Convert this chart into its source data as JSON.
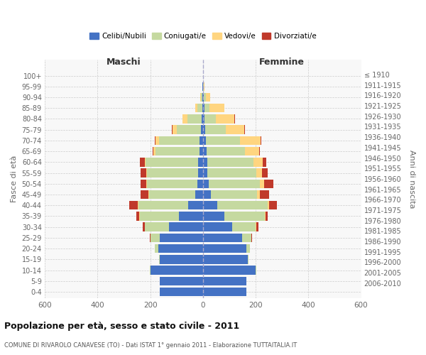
{
  "age_groups": [
    "0-4",
    "5-9",
    "10-14",
    "15-19",
    "20-24",
    "25-29",
    "30-34",
    "35-39",
    "40-44",
    "45-49",
    "50-54",
    "55-59",
    "60-64",
    "65-69",
    "70-74",
    "75-79",
    "80-84",
    "85-89",
    "90-94",
    "95-99",
    "100+"
  ],
  "birth_years": [
    "2006-2010",
    "2001-2005",
    "1996-2000",
    "1991-1995",
    "1986-1990",
    "1981-1985",
    "1976-1980",
    "1971-1975",
    "1966-1970",
    "1961-1965",
    "1956-1960",
    "1951-1955",
    "1946-1950",
    "1941-1945",
    "1936-1940",
    "1931-1935",
    "1926-1930",
    "1921-1925",
    "1916-1920",
    "1911-1915",
    "≤ 1910"
  ],
  "males": {
    "celibi": [
      165,
      165,
      200,
      165,
      170,
      165,
      130,
      90,
      55,
      30,
      22,
      18,
      18,
      14,
      12,
      8,
      5,
      3,
      2,
      1,
      0
    ],
    "coniugati": [
      0,
      0,
      2,
      2,
      12,
      35,
      90,
      150,
      190,
      175,
      190,
      195,
      200,
      165,
      155,
      90,
      55,
      18,
      5,
      2,
      0
    ],
    "vedovi": [
      0,
      0,
      0,
      0,
      0,
      0,
      0,
      2,
      2,
      2,
      2,
      2,
      2,
      8,
      12,
      18,
      18,
      8,
      2,
      0,
      0
    ],
    "divorziati": [
      0,
      0,
      0,
      0,
      0,
      2,
      8,
      10,
      32,
      30,
      22,
      22,
      18,
      5,
      5,
      2,
      0,
      0,
      0,
      0,
      0
    ]
  },
  "females": {
    "nubili": [
      165,
      165,
      200,
      170,
      165,
      150,
      110,
      80,
      55,
      30,
      22,
      18,
      18,
      14,
      10,
      8,
      5,
      5,
      2,
      1,
      0
    ],
    "coniugate": [
      0,
      0,
      2,
      2,
      12,
      35,
      90,
      155,
      190,
      175,
      195,
      185,
      175,
      145,
      130,
      80,
      45,
      20,
      8,
      2,
      0
    ],
    "vedove": [
      0,
      0,
      0,
      0,
      0,
      0,
      2,
      2,
      5,
      10,
      15,
      22,
      35,
      55,
      80,
      70,
      70,
      55,
      18,
      2,
      0
    ],
    "divorziate": [
      0,
      0,
      0,
      0,
      2,
      2,
      8,
      10,
      30,
      35,
      35,
      22,
      12,
      2,
      2,
      2,
      2,
      2,
      0,
      0,
      0
    ]
  },
  "colors": {
    "celibi": "#4472C4",
    "coniugati": "#C5D9A0",
    "vedovi": "#FFD580",
    "divorziati": "#C0392B"
  },
  "title": "Popolazione per età, sesso e stato civile - 2011",
  "subtitle": "COMUNE DI RIVAROLO CANAVESE (TO) - Dati ISTAT 1° gennaio 2011 - Elaborazione TUTTAITALIA.IT",
  "xlim": 600,
  "xlabel_left": "Maschi",
  "xlabel_right": "Femmine",
  "ylabel_left": "Fasce di età",
  "ylabel_right": "Anni di nascita",
  "bg_color": "#f8f8f8",
  "grid_color": "#cccccc"
}
